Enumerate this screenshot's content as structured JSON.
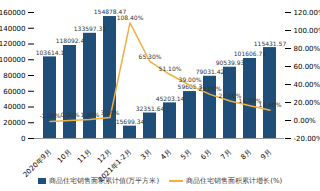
{
  "chart_data": {
    "type": "bar",
    "categories": [
      "2020年9月",
      "10月",
      "11月",
      "12月",
      "2021年1-2月",
      "3月",
      "4月",
      "5月",
      "6月",
      "7月",
      "8月",
      "9月"
    ],
    "series": [
      {
        "name": "商品住宅销售面积累计值(万平方米)",
        "type": "bar",
        "color": "#1f4e79",
        "values": [
          103614.1,
          118092.4,
          133597.31,
          154878.47,
          15699.34,
          32351.64,
          45203.14,
          59605.3,
          79031.42,
          90539.93,
          101606.71,
          115431.57
        ]
      },
      {
        "name": "商品住宅销售面积累计增长(%)",
        "type": "line",
        "axis": "y2",
        "color": "#f0b040",
        "values": [
          -1.0,
          0.0,
          1.0,
          3.2,
          108.4,
          65.3,
          51.1,
          39.0,
          29.0,
          21.6,
          16.3,
          11.4
        ],
        "value_labels": [
          "-1.00%",
          "0.00%",
          "1.00%",
          "3.20%",
          "108.40%",
          "65.30%",
          "51.10%",
          "39.00%",
          "29.00%",
          "21.60%",
          "16.30%",
          "11.40%"
        ]
      }
    ],
    "ylim": [
      0,
      160000
    ],
    "yticks": [
      0,
      20000,
      40000,
      60000,
      80000,
      100000,
      120000,
      140000,
      160000
    ],
    "y2lim": [
      -20,
      120
    ],
    "y2ticks": [
      {
        "value": -20,
        "label": "-20.00%"
      },
      {
        "value": 0,
        "label": "0.00%"
      },
      {
        "value": 20,
        "label": "20.00%"
      },
      {
        "value": 40,
        "label": "40.00%"
      },
      {
        "value": 60,
        "label": "60.00%"
      },
      {
        "value": 80,
        "label": "80.00%"
      },
      {
        "value": 100,
        "label": "100.00%"
      },
      {
        "value": 120,
        "label": "120.00%"
      }
    ],
    "data_labels": true,
    "legend": "bottom",
    "grid": false
  }
}
